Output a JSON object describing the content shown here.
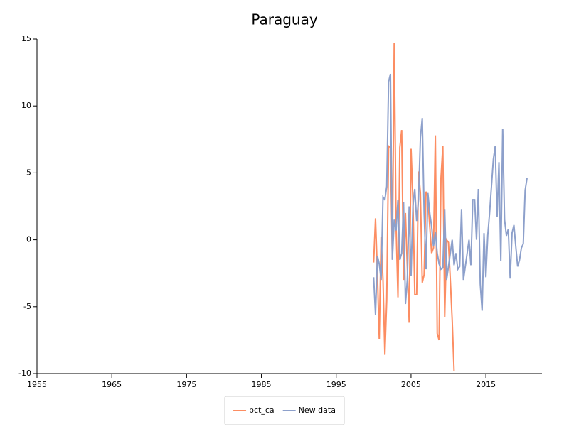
{
  "chart_data": {
    "type": "line",
    "title": "Paraguay",
    "x": [
      2000,
      2000.25,
      2000.5,
      2000.75,
      2001,
      2001.25,
      2001.5,
      2001.75,
      2002,
      2002.25,
      2002.5,
      2002.75,
      2003,
      2003.25,
      2003.5,
      2003.75,
      2004,
      2004.25,
      2004.5,
      2004.75,
      2005,
      2005.25,
      2005.5,
      2005.75,
      2006,
      2006.25,
      2006.5,
      2006.75,
      2007,
      2007.25,
      2007.5,
      2007.75,
      2008,
      2008.25,
      2008.5,
      2008.75,
      2009,
      2009.25,
      2009.5,
      2009.75,
      2010,
      2010.25,
      2010.5,
      2010.75,
      2011,
      2011.25,
      2011.5,
      2011.75,
      2012,
      2012.25,
      2012.5,
      2012.75,
      2013,
      2013.25,
      2013.5,
      2013.75,
      2014,
      2014.25,
      2014.5,
      2014.75,
      2015,
      2015.25,
      2015.5,
      2015.75,
      2016,
      2016.25,
      2016.5,
      2016.75,
      2017,
      2017.25,
      2017.5,
      2017.75,
      2018,
      2018.25,
      2018.5,
      2018.75,
      2019,
      2019.25,
      2019.5,
      2019.75,
      2020,
      2020.25,
      2020.5
    ],
    "series": [
      {
        "name": "pct_ca",
        "color": "#fc8d62",
        "values": [
          -1.7,
          1.6,
          -2.5,
          -7.4,
          0.2,
          -3.0,
          -8.6,
          -4.5,
          7.0,
          6.9,
          -1.4,
          14.7,
          1.0,
          -4.3,
          6.9,
          8.2,
          -3.0,
          2.0,
          -2.0,
          -6.2,
          6.8,
          3.0,
          -4.1,
          -4.1,
          5.1,
          3.5,
          -3.2,
          -2.6,
          3.6,
          3.2,
          1.0,
          -1.0,
          -0.6,
          7.8,
          -7.0,
          -7.5,
          4.6,
          7.0,
          -5.8,
          0.0,
          -0.2,
          -3.0,
          -6.0,
          -9.8,
          null,
          null,
          null,
          null,
          null,
          null,
          null,
          null,
          null,
          null,
          null,
          null,
          null,
          null,
          null,
          null,
          null,
          null,
          null,
          null,
          null,
          null,
          null,
          null,
          null,
          null,
          null,
          null,
          null,
          null,
          null,
          null,
          null,
          null,
          null,
          null,
          null,
          null,
          null
        ]
      },
      {
        "name": "New data",
        "color": "#8da0cb",
        "values": [
          -2.8,
          -5.6,
          -1.2,
          -1.8,
          -3.0,
          3.2,
          3.0,
          4.0,
          11.8,
          12.4,
          -1.5,
          1.5,
          0.7,
          3.0,
          -1.5,
          -1.0,
          2.8,
          -4.8,
          -3.0,
          2.5,
          -2.7,
          2.5,
          3.8,
          1.4,
          3.0,
          7.6,
          9.1,
          2.0,
          -2.2,
          3.5,
          2.0,
          1.0,
          -0.5,
          0.6,
          -1.0,
          -1.8,
          -2.2,
          -2.1,
          2.3,
          -3.0,
          -2.0,
          -1.0,
          0.0,
          -1.9,
          -1.0,
          -2.2,
          -2.0,
          2.3,
          -3.0,
          -2.0,
          -1.0,
          0.0,
          -1.9,
          3.0,
          3.0,
          0.0,
          3.8,
          -3.3,
          -5.3,
          0.5,
          -2.8,
          0.3,
          2.0,
          4.0,
          6.0,
          7.0,
          1.7,
          5.8,
          -1.6,
          8.3,
          1.5,
          0.3,
          0.8,
          -2.9,
          0.5,
          1.1,
          -0.5,
          -2.0,
          -1.5,
          -0.6,
          -0.3,
          3.7,
          4.6
        ]
      }
    ],
    "xlim": [
      1955,
      2022.5
    ],
    "xticks": [
      1955,
      1965,
      1975,
      1985,
      1995,
      2005,
      2015
    ],
    "ylim": [
      -10,
      15
    ],
    "yticks": [
      -10,
      -5,
      0,
      5,
      10,
      15
    ],
    "legend": "bottom"
  }
}
